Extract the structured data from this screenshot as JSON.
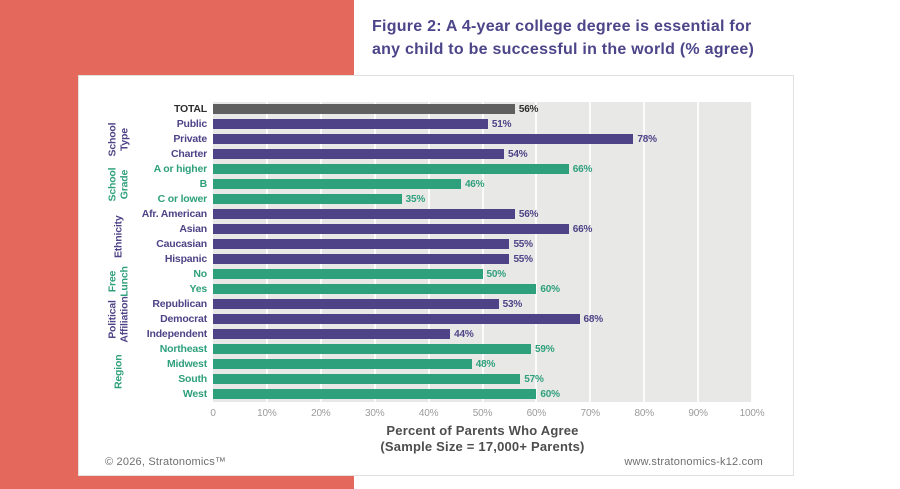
{
  "page": {
    "title_line1": "Figure 2: A 4-year college degree is essential for",
    "title_line2": "any child to be successful in the world (% agree)",
    "footer_left": "© 2026, Stratonomics™",
    "footer_right": "www.stratonomics-k12.com"
  },
  "colors": {
    "coral": "#e4695c",
    "purple": "#4d4386",
    "green": "#2fa07c",
    "total": "#5f5f5f",
    "total_label": "#2e2e2e",
    "plot_bg": "#e8e8e7",
    "title_text": "#4c4589",
    "axis_tick_text": "#9b9b9b",
    "axis_title_text": "#4d4d4d",
    "footer_text": "#6f6f6f"
  },
  "chart_data": {
    "type": "bar",
    "orientation": "horizontal",
    "title": "Figure 2: A 4-year college degree is essential for any child to be successful in the world (% agree)",
    "xlabel_line1": "Percent of Parents Who Agree",
    "xlabel_line2": "(Sample Size = 17,000+ Parents)",
    "xlim": [
      0,
      100
    ],
    "grid": true,
    "x_ticks": [
      "0",
      "10%",
      "20%",
      "30%",
      "40%",
      "50%",
      "60%",
      "70%",
      "80%",
      "90%",
      "100%"
    ],
    "groups": [
      {
        "name": "",
        "color": "total",
        "rows": [
          {
            "label": "TOTAL",
            "value": 56
          }
        ]
      },
      {
        "name": "School Type",
        "color": "purple",
        "rows": [
          {
            "label": "Public",
            "value": 51
          },
          {
            "label": "Private",
            "value": 78
          },
          {
            "label": "Charter",
            "value": 54
          }
        ]
      },
      {
        "name": "School Grade",
        "color": "green",
        "rows": [
          {
            "label": "A or higher",
            "value": 66
          },
          {
            "label": "B",
            "value": 46
          },
          {
            "label": "C or lower",
            "value": 35
          }
        ]
      },
      {
        "name": "Ethnicity",
        "color": "purple",
        "rows": [
          {
            "label": "Afr. American",
            "value": 56
          },
          {
            "label": "Asian",
            "value": 66
          },
          {
            "label": "Caucasian",
            "value": 55
          },
          {
            "label": "Hispanic",
            "value": 55
          }
        ]
      },
      {
        "name": "Free Lunch",
        "color": "green",
        "rows": [
          {
            "label": "No",
            "value": 50
          },
          {
            "label": "Yes",
            "value": 60
          }
        ]
      },
      {
        "name": "Political Affiliation",
        "color": "purple",
        "rows": [
          {
            "label": "Republican",
            "value": 53
          },
          {
            "label": "Democrat",
            "value": 68
          },
          {
            "label": "Independent",
            "value": 44
          }
        ]
      },
      {
        "name": "Region",
        "color": "green",
        "rows": [
          {
            "label": "Northeast",
            "value": 59
          },
          {
            "label": "Midwest",
            "value": 48
          },
          {
            "label": "South",
            "value": 57
          },
          {
            "label": "West",
            "value": 60
          }
        ]
      }
    ]
  }
}
